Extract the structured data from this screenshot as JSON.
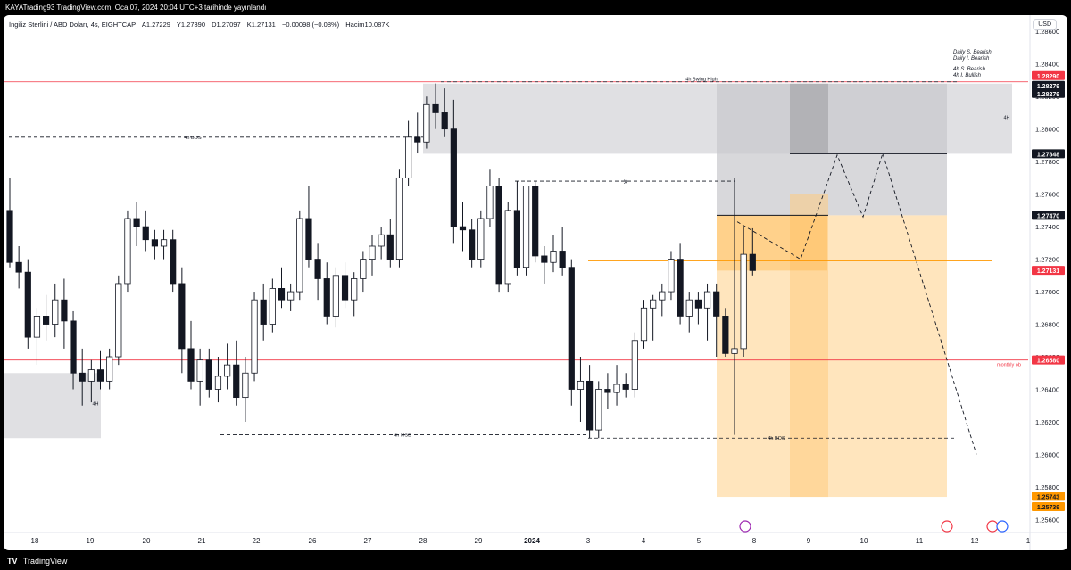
{
  "header": {
    "publish_text": "KAYATrading93 TradingView.com, Oca 07, 2024 20:04 UTC+3 tarihinde yayınlandı"
  },
  "legend": {
    "symbol": "İngiliz Sterlini / ABD Doları, 4s, EIGHTCAP",
    "open": "A1.27229",
    "high": "Y1.27390",
    "low": "D1.27097",
    "close": "K1.27131",
    "change": "−0.00098 (−0.08%)",
    "volume": "Hacim10.087K"
  },
  "currency_button": "USD",
  "bias_notes": [
    "Daily S. Bearish",
    "Daily I. Bearish",
    "4h S. Bearish",
    "4h I. Bullish"
  ],
  "footer": {
    "brand": "TradingView"
  },
  "colors": {
    "bull": "#ffffff",
    "bear": "#131722",
    "red_line": "#f23645",
    "orange_line": "#ff9800",
    "zone_gray": "#e0e0e3",
    "zone_orange": "#ffe0b2",
    "badge_dark": "#131722",
    "badge_red": "#f23645",
    "badge_orange": "#ff9800",
    "badge_gray": "#787b86"
  },
  "chart_data": {
    "type": "candlestick",
    "symbol": "GBPUSD",
    "timeframe": "4s",
    "y_axis": {
      "ticks": [
        "1.25600",
        "1.25800",
        "1.26000",
        "1.26200",
        "1.26400",
        "1.26600",
        "1.26800",
        "1.27000",
        "1.27200",
        "1.27400",
        "1.27600",
        "1.27800",
        "1.28000",
        "1.28200",
        "1.28400",
        "1.28600"
      ],
      "range": [
        1.2552,
        1.287
      ]
    },
    "x_axis": {
      "ticks": [
        "18",
        "19",
        "20",
        "21",
        "22",
        "26",
        "27",
        "28",
        "29",
        "2024",
        "3",
        "4",
        "5",
        "8",
        "9",
        "10",
        "11",
        "12",
        "1"
      ]
    },
    "candles": [
      [
        1.275,
        1.277,
        1.2715,
        1.2718
      ],
      [
        1.2718,
        1.2728,
        1.2702,
        1.2712
      ],
      [
        1.2712,
        1.272,
        1.2665,
        1.2672
      ],
      [
        1.2672,
        1.269,
        1.2655,
        1.2685
      ],
      [
        1.2685,
        1.2698,
        1.267,
        1.268
      ],
      [
        1.268,
        1.2705,
        1.2672,
        1.2695
      ],
      [
        1.2695,
        1.2708,
        1.2665,
        1.2682
      ],
      [
        1.2682,
        1.2688,
        1.264,
        1.265
      ],
      [
        1.265,
        1.2665,
        1.263,
        1.2645
      ],
      [
        1.2645,
        1.2658,
        1.2632,
        1.2652
      ],
      [
        1.2652,
        1.2664,
        1.264,
        1.2645
      ],
      [
        1.2645,
        1.2665,
        1.264,
        1.266
      ],
      [
        1.266,
        1.271,
        1.2655,
        1.2705
      ],
      [
        1.2705,
        1.275,
        1.27,
        1.2745
      ],
      [
        1.2745,
        1.2755,
        1.2728,
        1.274
      ],
      [
        1.274,
        1.275,
        1.2725,
        1.2732
      ],
      [
        1.2732,
        1.2738,
        1.272,
        1.2728
      ],
      [
        1.2728,
        1.2738,
        1.272,
        1.2732
      ],
      [
        1.2732,
        1.2738,
        1.27,
        1.2705
      ],
      [
        1.2705,
        1.2715,
        1.265,
        1.2665
      ],
      [
        1.2665,
        1.2682,
        1.264,
        1.2645
      ],
      [
        1.2645,
        1.2665,
        1.263,
        1.2658
      ],
      [
        1.2658,
        1.2665,
        1.2635,
        1.264
      ],
      [
        1.264,
        1.266,
        1.2632,
        1.2648
      ],
      [
        1.2648,
        1.2668,
        1.264,
        1.2655
      ],
      [
        1.2655,
        1.267,
        1.263,
        1.2635
      ],
      [
        1.2635,
        1.266,
        1.262,
        1.265
      ],
      [
        1.265,
        1.27,
        1.2645,
        1.2695
      ],
      [
        1.2695,
        1.2705,
        1.267,
        1.268
      ],
      [
        1.268,
        1.2708,
        1.2675,
        1.2702
      ],
      [
        1.2702,
        1.2715,
        1.269,
        1.2695
      ],
      [
        1.2695,
        1.2705,
        1.2688,
        1.27
      ],
      [
        1.27,
        1.275,
        1.2695,
        1.2745
      ],
      [
        1.2745,
        1.2765,
        1.2715,
        1.272
      ],
      [
        1.272,
        1.273,
        1.2695,
        1.2708
      ],
      [
        1.2708,
        1.2718,
        1.268,
        1.2685
      ],
      [
        1.2685,
        1.2715,
        1.2678,
        1.271
      ],
      [
        1.271,
        1.2718,
        1.269,
        1.2695
      ],
      [
        1.2695,
        1.2712,
        1.2685,
        1.2708
      ],
      [
        1.2708,
        1.2725,
        1.27,
        1.272
      ],
      [
        1.272,
        1.2735,
        1.271,
        1.2728
      ],
      [
        1.2728,
        1.274,
        1.272,
        1.2735
      ],
      [
        1.2735,
        1.2745,
        1.2715,
        1.272
      ],
      [
        1.272,
        1.2775,
        1.2715,
        1.277
      ],
      [
        1.277,
        1.2805,
        1.2765,
        1.2795
      ],
      [
        1.2795,
        1.281,
        1.2785,
        1.2792
      ],
      [
        1.2792,
        1.282,
        1.2788,
        1.2815
      ],
      [
        1.2815,
        1.2828,
        1.28,
        1.281
      ],
      [
        1.281,
        1.2825,
        1.2795,
        1.28
      ],
      [
        1.28,
        1.2818,
        1.273,
        1.274
      ],
      [
        1.274,
        1.2755,
        1.2725,
        1.2738
      ],
      [
        1.2738,
        1.2745,
        1.2715,
        1.272
      ],
      [
        1.272,
        1.275,
        1.2715,
        1.2745
      ],
      [
        1.2745,
        1.2775,
        1.274,
        1.2765
      ],
      [
        1.2765,
        1.277,
        1.27,
        1.2705
      ],
      [
        1.2705,
        1.2755,
        1.27,
        1.275
      ],
      [
        1.275,
        1.2768,
        1.271,
        1.2715
      ],
      [
        1.2715,
        1.2765,
        1.271,
        1.2765
      ],
      [
        1.2765,
        1.2768,
        1.2718,
        1.2722
      ],
      [
        1.2722,
        1.2728,
        1.2705,
        1.2718
      ],
      [
        1.2718,
        1.2735,
        1.2712,
        1.2725
      ],
      [
        1.2725,
        1.274,
        1.271,
        1.2715
      ],
      [
        1.2715,
        1.272,
        1.263,
        1.264
      ],
      [
        1.264,
        1.266,
        1.262,
        1.2645
      ],
      [
        1.2645,
        1.2655,
        1.261,
        1.2615
      ],
      [
        1.2615,
        1.2645,
        1.261,
        1.264
      ],
      [
        1.264,
        1.265,
        1.2628,
        1.2638
      ],
      [
        1.2638,
        1.2655,
        1.263,
        1.2643
      ],
      [
        1.2643,
        1.265,
        1.2635,
        1.264
      ],
      [
        1.264,
        1.2675,
        1.2635,
        1.267
      ],
      [
        1.267,
        1.2695,
        1.2665,
        1.269
      ],
      [
        1.269,
        1.2698,
        1.267,
        1.2695
      ],
      [
        1.2695,
        1.2705,
        1.2685,
        1.27
      ],
      [
        1.27,
        1.2725,
        1.2695,
        1.272
      ],
      [
        1.272,
        1.273,
        1.268,
        1.2685
      ],
      [
        1.2685,
        1.27,
        1.2675,
        1.2695
      ],
      [
        1.2695,
        1.27,
        1.268,
        1.269
      ],
      [
        1.269,
        1.2705,
        1.267,
        1.27
      ],
      [
        1.27,
        1.2705,
        1.266,
        1.2685
      ],
      [
        1.2685,
        1.269,
        1.266,
        1.2662
      ],
      [
        1.2662,
        1.277,
        1.2612,
        1.2665
      ],
      [
        1.2665,
        1.274,
        1.266,
        1.2723
      ],
      [
        1.2723,
        1.2739,
        1.271,
        1.2713
      ]
    ],
    "annotations": {
      "swing_high_label": "4h Swing High",
      "bos_left_label": "4h BOS",
      "msb_label": "4h MSB",
      "bos_right_label": "4h BOS",
      "monthly_ob_label": "monthly ob",
      "zone_label_right": "4H",
      "zone_label_left": "4H",
      "x_marker": "x"
    },
    "price_labels": [
      "1.28290",
      "1.28279",
      "1.28279",
      "1.27848",
      "1.27470",
      "1.27131",
      "1.26580",
      "1.25743",
      "1.25739"
    ]
  }
}
